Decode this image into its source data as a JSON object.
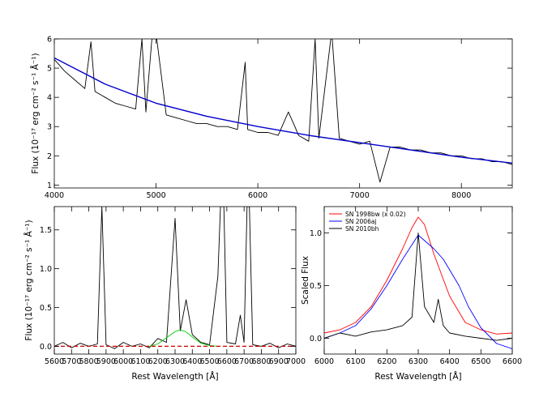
{
  "chart_data": [
    {
      "type": "line",
      "panel": "top",
      "xlabel": "",
      "ylabel": "Flux (10⁻¹⁷ erg cm⁻² s⁻¹ Å⁻¹)",
      "xlim": [
        4000,
        8500
      ],
      "ylim": [
        0.9,
        6.0
      ],
      "xticks": [
        4000,
        5000,
        6000,
        7000,
        8000
      ],
      "yticks": [
        1,
        2,
        3,
        4,
        5,
        6
      ],
      "grid": false,
      "series": [
        {
          "color": "#000000",
          "x": [
            4000,
            4100,
            4200,
            4300,
            4360,
            4400,
            4500,
            4600,
            4700,
            4800,
            4861,
            4900,
            4959,
            5007,
            5100,
            5200,
            5300,
            5400,
            5500,
            5600,
            5700,
            5800,
            5876,
            5900,
            6000,
            6100,
            6200,
            6300,
            6364,
            6400,
            6500,
            6563,
            6600,
            6717,
            6731,
            6800,
            6900,
            7000,
            7100,
            7200,
            7300,
            7400,
            7500,
            7600,
            7700,
            7800,
            7900,
            8000,
            8100,
            8200,
            8300,
            8400,
            8500
          ],
          "y": [
            5.3,
            4.9,
            4.6,
            4.3,
            5.9,
            4.2,
            4.0,
            3.8,
            3.7,
            3.6,
            6.0,
            3.5,
            6.0,
            6.0,
            3.4,
            3.3,
            3.2,
            3.1,
            3.1,
            3.0,
            3.0,
            2.9,
            5.2,
            2.9,
            2.8,
            2.8,
            2.7,
            3.5,
            3.0,
            2.7,
            2.5,
            6.0,
            2.6,
            6.0,
            6.0,
            2.6,
            2.5,
            2.4,
            2.5,
            1.1,
            2.3,
            2.3,
            2.2,
            2.2,
            2.1,
            2.1,
            2.0,
            2.0,
            1.9,
            1.9,
            1.8,
            1.8,
            1.7
          ]
        },
        {
          "color": "#0000cc",
          "x": [
            4000,
            4500,
            5000,
            5500,
            6000,
            6500,
            7000,
            7500,
            8000,
            8500
          ],
          "y": [
            5.35,
            4.45,
            3.8,
            3.35,
            3.0,
            2.7,
            2.45,
            2.2,
            1.95,
            1.75
          ]
        }
      ]
    },
    {
      "type": "line",
      "panel": "bottom-left",
      "xlabel": "Rest Wavelength [Å]",
      "ylabel": "Flux (10⁻¹⁷ erg cm⁻² s⁻¹ Å⁻¹)",
      "xlim": [
        5600,
        7000
      ],
      "ylim": [
        -0.1,
        1.8
      ],
      "xticks": [
        5600,
        5700,
        5800,
        5900,
        6000,
        6100,
        6200,
        6300,
        6400,
        6500,
        6600,
        6700,
        6800,
        6900,
        7000
      ],
      "yticks": [
        0.0,
        0.5,
        1.0,
        1.5
      ],
      "grid": false,
      "series": [
        {
          "color": "#000000",
          "x": [
            5600,
            5650,
            5700,
            5750,
            5800,
            5850,
            5876,
            5900,
            5950,
            6000,
            6050,
            6100,
            6150,
            6200,
            6250,
            6300,
            6330,
            6364,
            6400,
            6450,
            6500,
            6548,
            6563,
            6583,
            6600,
            6650,
            6678,
            6700,
            6717,
            6731,
            6750,
            6800,
            6850,
            6900,
            6950,
            7000
          ],
          "y": [
            0.0,
            0.05,
            -0.02,
            0.04,
            0.0,
            0.03,
            1.8,
            0.02,
            -0.03,
            0.05,
            0.0,
            0.03,
            -0.02,
            0.1,
            0.05,
            1.65,
            0.2,
            0.6,
            0.15,
            0.05,
            0.02,
            0.9,
            1.8,
            1.8,
            0.05,
            0.03,
            0.4,
            0.05,
            1.8,
            1.8,
            0.02,
            0.0,
            0.04,
            -0.02,
            0.03,
            0.0
          ]
        },
        {
          "color": "#00cc00",
          "x": [
            6150,
            6200,
            6250,
            6300,
            6330,
            6360,
            6400,
            6450,
            6500,
            6550
          ],
          "y": [
            0.0,
            0.03,
            0.11,
            0.19,
            0.21,
            0.19,
            0.12,
            0.04,
            0.01,
            0.0
          ]
        },
        {
          "color": "#cc0000",
          "x": [
            5600,
            7000
          ],
          "y": [
            0.0,
            0.0
          ]
        }
      ]
    },
    {
      "type": "line",
      "panel": "bottom-right",
      "xlabel": "Rest Wavelength [Å]",
      "ylabel": "Scaled Flux",
      "xlim": [
        6000,
        6600
      ],
      "ylim": [
        -0.15,
        1.25
      ],
      "xticks": [
        6000,
        6100,
        6200,
        6300,
        6400,
        6500,
        6600
      ],
      "yticks": [
        0.0,
        0.5,
        1.0
      ],
      "grid": false,
      "legend_position": "top-left",
      "series": [
        {
          "name": "SN 1998bw (x 0.02)",
          "color": "#ff0000",
          "x": [
            6000,
            6050,
            6100,
            6150,
            6200,
            6250,
            6280,
            6300,
            6320,
            6350,
            6400,
            6450,
            6500,
            6550,
            6600
          ],
          "y": [
            0.05,
            0.08,
            0.15,
            0.3,
            0.55,
            0.85,
            1.05,
            1.15,
            1.08,
            0.8,
            0.4,
            0.15,
            0.08,
            0.04,
            0.05
          ]
        },
        {
          "name": "SN 2006aj",
          "color": "#0000ff",
          "x": [
            6000,
            6050,
            6100,
            6150,
            6200,
            6250,
            6300,
            6350,
            6380,
            6400,
            6430,
            6460,
            6500,
            6550,
            6600
          ],
          "y": [
            0.0,
            0.05,
            0.12,
            0.28,
            0.5,
            0.75,
            0.98,
            0.85,
            0.75,
            0.65,
            0.5,
            0.3,
            0.1,
            -0.05,
            -0.1
          ]
        },
        {
          "name": "SN 2010bh",
          "color": "#000000",
          "x": [
            6000,
            6050,
            6100,
            6150,
            6200,
            6250,
            6280,
            6300,
            6320,
            6350,
            6364,
            6380,
            6400,
            6450,
            6500,
            6550,
            6600
          ],
          "y": [
            0.0,
            0.05,
            0.02,
            0.06,
            0.08,
            0.12,
            0.2,
            1.0,
            0.3,
            0.15,
            0.37,
            0.12,
            0.05,
            0.02,
            0.0,
            -0.02,
            0.0
          ]
        }
      ]
    }
  ]
}
